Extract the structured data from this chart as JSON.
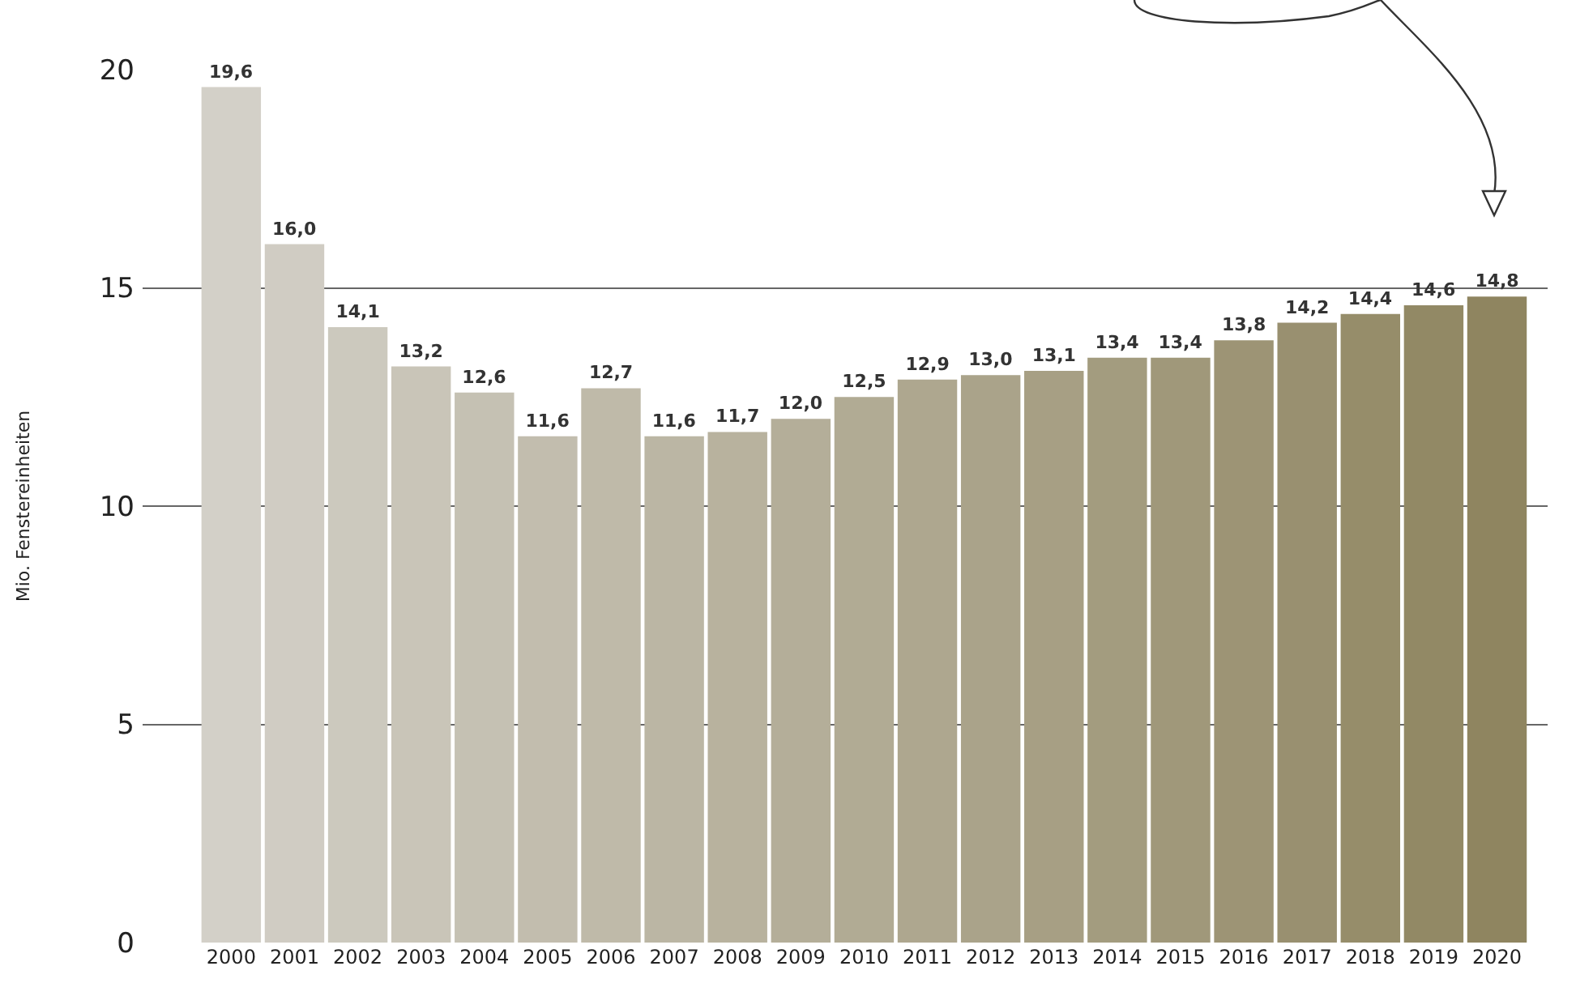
{
  "chart_data": {
    "type": "bar",
    "ylabel": "Mio. Fenstereinheiten",
    "categories": [
      "2000",
      "2001",
      "2002",
      "2003",
      "2004",
      "2005",
      "2006",
      "2007",
      "2008",
      "2009",
      "2010",
      "2011",
      "2012",
      "2013",
      "2014",
      "2015",
      "2016",
      "2017",
      "2018",
      "2019",
      "2020"
    ],
    "values": [
      19.6,
      16.0,
      14.1,
      13.2,
      12.6,
      11.6,
      12.7,
      11.6,
      11.7,
      12.0,
      12.5,
      12.9,
      13.0,
      13.1,
      13.4,
      13.4,
      13.8,
      14.2,
      14.4,
      14.6,
      14.8
    ],
    "value_labels": [
      "19,6",
      "16,0",
      "14,1",
      "13,2",
      "12,6",
      "11,6",
      "12,7",
      "11,6",
      "11,7",
      "12,0",
      "12,5",
      "12,9",
      "13,0",
      "13,1",
      "13,4",
      "13,4",
      "13,8",
      "14,2",
      "14,4",
      "14,6",
      "14,8"
    ],
    "colors": [
      "#d3d0c8",
      "#d0ccc3",
      "#ccc9be",
      "#c9c5b8",
      "#c5c1b3",
      "#c2bdae",
      "#bfbaa9",
      "#bbb6a4",
      "#b8b29e",
      "#b4ae99",
      "#b1ab94",
      "#aea78f",
      "#aaa38a",
      "#a79f84",
      "#a39c7f",
      "#a0987a",
      "#9d9475",
      "#999070",
      "#968d6a",
      "#928965",
      "#8f8560"
    ],
    "ylim": [
      0,
      20
    ],
    "yticks": [
      0,
      5,
      10,
      15,
      20
    ],
    "grid": "y"
  }
}
